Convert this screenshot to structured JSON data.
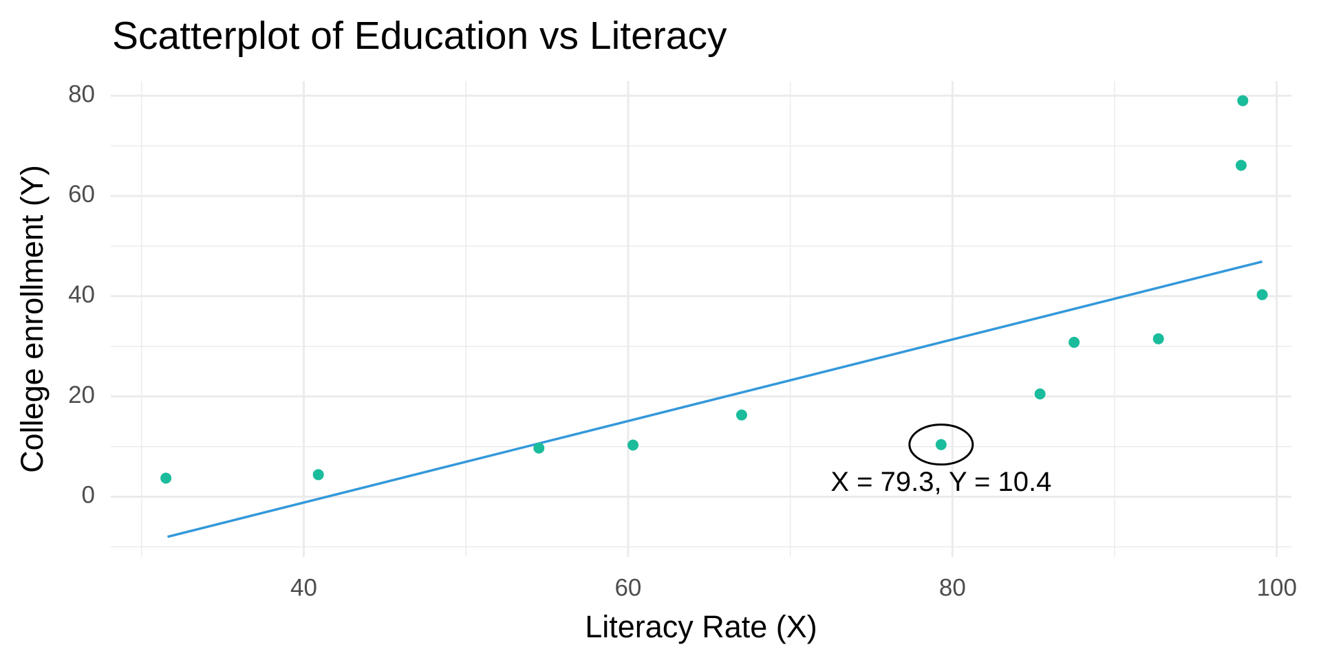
{
  "chart_data": {
    "type": "scatter",
    "title": "Scatterplot of Education vs Literacy",
    "x_label": "Literacy Rate (X)",
    "y_label": "College enrollment (Y)",
    "points": {
      "color": "#1abc9c",
      "x": [
        31.5,
        40.9,
        54.5,
        60.3,
        67.0,
        79.3,
        85.4,
        87.5,
        92.7,
        97.8,
        97.9,
        99.1
      ],
      "y": [
        3.7,
        4.4,
        9.7,
        10.3,
        16.3,
        10.4,
        20.5,
        30.8,
        31.5,
        66.1,
        79.0,
        40.3
      ]
    },
    "fit_line": {
      "color": "#3498db",
      "x": [
        31.6,
        99.1
      ],
      "y": [
        -8.0,
        46.9
      ]
    },
    "annotation": {
      "text": "X = 79.3, Y = 10.4",
      "x": 79.3,
      "y": 10.4
    },
    "xlim": [
      28.1,
      100.9
    ],
    "ylim": [
      -12.0,
      82.9
    ],
    "xticks": [
      40,
      60,
      80,
      100
    ],
    "yticks": [
      0,
      20,
      40,
      60,
      80
    ],
    "grid": true,
    "minor_grid": true
  }
}
